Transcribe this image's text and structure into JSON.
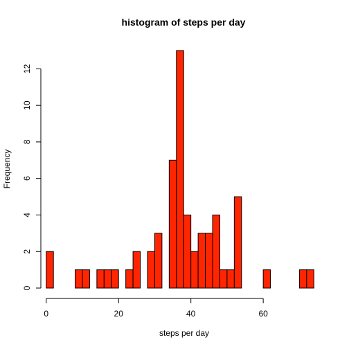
{
  "chart_data": {
    "type": "bar",
    "title": "histogram of steps per day",
    "xlabel": "steps per day",
    "ylabel": "Frequency",
    "bar_color": "#ff2500",
    "bin_width": 2,
    "bins_start": [
      0,
      2,
      4,
      6,
      8,
      10,
      12,
      14,
      16,
      18,
      20,
      22,
      24,
      26,
      28,
      30,
      32,
      34,
      36,
      38,
      40,
      42,
      44,
      46,
      48,
      50,
      52,
      54,
      56,
      58,
      60,
      62,
      64,
      66,
      68,
      70,
      72
    ],
    "values": [
      2,
      0,
      0,
      0,
      1,
      1,
      0,
      1,
      1,
      1,
      0,
      1,
      2,
      0,
      2,
      3,
      0,
      7,
      13,
      4,
      2,
      3,
      3,
      4,
      1,
      1,
      5,
      0,
      0,
      0,
      1,
      0,
      0,
      0,
      0,
      1,
      1
    ],
    "x_ticks": [
      "0",
      "20",
      "40",
      "60"
    ],
    "y_ticks": [
      "0",
      "2",
      "4",
      "6",
      "8",
      "10",
      "12"
    ],
    "xlim": [
      -1.48,
      75.48
    ],
    "ylim": [
      0,
      13
    ],
    "grid": false
  }
}
